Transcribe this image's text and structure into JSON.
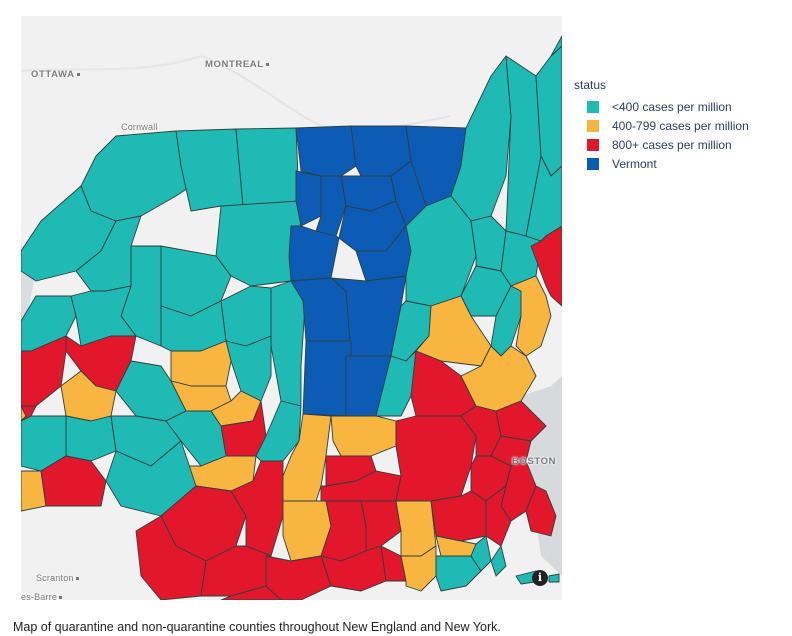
{
  "caption": "Map of quarantine and non-quarantine counties throughout New England and New York.",
  "legend": {
    "title": "status",
    "items": [
      {
        "label": "<400 cases per million",
        "color": "#1fbab4"
      },
      {
        "label": "400-799 cases per million",
        "color": "#f8b53f"
      },
      {
        "label": "800+ cases per million",
        "color": "#e3172b"
      },
      {
        "label": "Vermont",
        "color": "#0c5cb5"
      }
    ]
  },
  "cities": {
    "ottawa": "OTTAWA",
    "montreal": "MONTREAL",
    "cornwall": "Cornwall",
    "boston": "BOSTON",
    "scranton": "Scranton",
    "wilkes_barre": "es-Barre"
  },
  "info_button": "i"
}
